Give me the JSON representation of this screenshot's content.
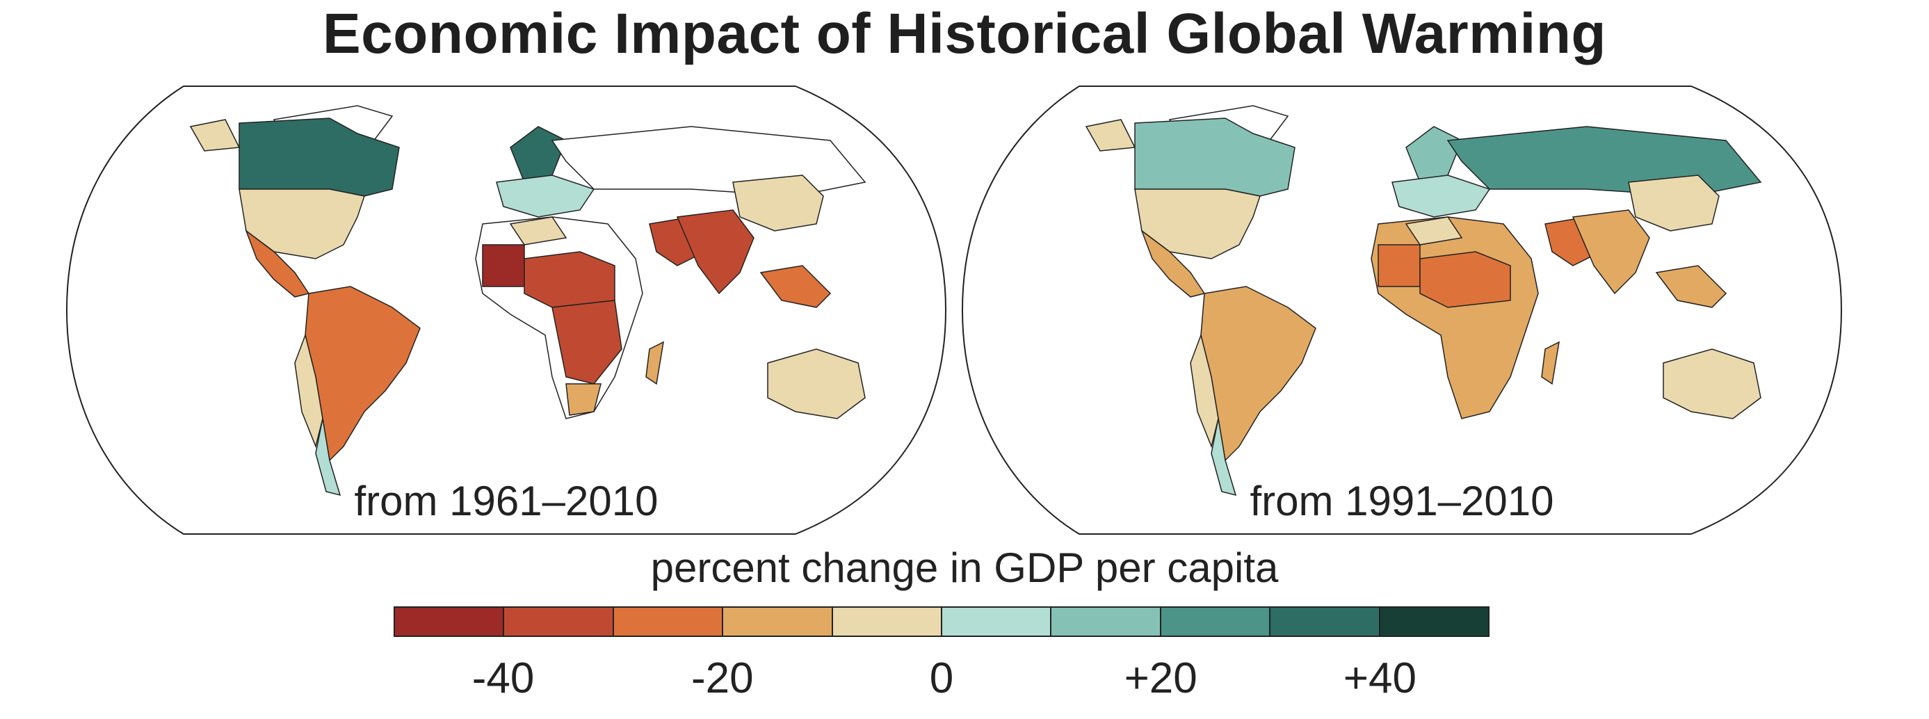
{
  "title": "Economic Impact of Historical Global Warming",
  "colors": {
    "minus_45": "#9c2a27",
    "minus_35": "#c04a31",
    "minus_25": "#dd733a",
    "minus_15": "#e2a963",
    "minus_5": "#ead9ad",
    "plus_5": "#b2ded4",
    "plus_15": "#85c2b5",
    "plus_25": "#4c9488",
    "plus_35": "#2e6d63",
    "plus_45": "#183f36",
    "no_data": "#ffffff"
  },
  "maps": [
    {
      "label": "from 1961–2010"
    },
    {
      "label": "from 1991–2010"
    }
  ],
  "legend": {
    "title": "percent change in GDP per capita",
    "bins": [
      "#9c2a27",
      "#c04a31",
      "#dd733a",
      "#e2a963",
      "#ead9ad",
      "#b2ded4",
      "#85c2b5",
      "#4c9488",
      "#2e6d63",
      "#183f36"
    ],
    "ticks": [
      "-40",
      "-20",
      "0",
      "+20",
      "+40"
    ]
  }
}
